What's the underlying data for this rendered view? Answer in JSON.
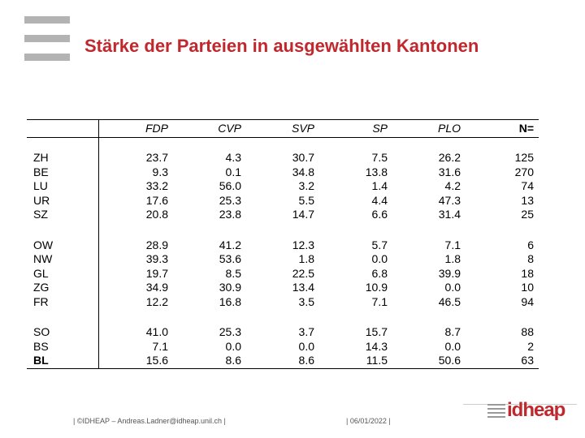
{
  "slide": {
    "title": "Stärke der Parteien in ausgewählten Kantonen"
  },
  "table": {
    "headers": [
      "",
      "FDP",
      "CVP",
      "SVP",
      "SP",
      "PLO",
      "N="
    ],
    "groups": [
      [
        {
          "canton": "ZH",
          "values": [
            "23.7",
            "4.3",
            "30.7",
            "7.5",
            "26.2",
            "125"
          ]
        },
        {
          "canton": "BE",
          "values": [
            "9.3",
            "0.1",
            "34.8",
            "13.8",
            "31.6",
            "270"
          ]
        },
        {
          "canton": "LU",
          "values": [
            "33.2",
            "56.0",
            "3.2",
            "1.4",
            "4.2",
            "74"
          ]
        },
        {
          "canton": "UR",
          "values": [
            "17.6",
            "25.3",
            "5.5",
            "4.4",
            "47.3",
            "13"
          ]
        },
        {
          "canton": "SZ",
          "values": [
            "20.8",
            "23.8",
            "14.7",
            "6.6",
            "31.4",
            "25"
          ]
        }
      ],
      [
        {
          "canton": "OW",
          "values": [
            "28.9",
            "41.2",
            "12.3",
            "5.7",
            "7.1",
            "6"
          ]
        },
        {
          "canton": "NW",
          "values": [
            "39.3",
            "53.6",
            "1.8",
            "0.0",
            "1.8",
            "8"
          ]
        },
        {
          "canton": "GL",
          "values": [
            "19.7",
            "8.5",
            "22.5",
            "6.8",
            "39.9",
            "18"
          ]
        },
        {
          "canton": "ZG",
          "values": [
            "34.9",
            "30.9",
            "13.4",
            "10.9",
            "0.0",
            "10"
          ]
        },
        {
          "canton": "FR",
          "values": [
            "12.2",
            "16.8",
            "3.5",
            "7.1",
            "46.5",
            "94"
          ]
        }
      ],
      [
        {
          "canton": "SO",
          "values": [
            "41.0",
            "25.3",
            "3.7",
            "15.7",
            "8.7",
            "88"
          ]
        },
        {
          "canton": "BS",
          "values": [
            "7.1",
            "0.0",
            "0.0",
            "14.3",
            "0.0",
            "2"
          ]
        },
        {
          "canton": "BL",
          "values": [
            "15.6",
            "8.6",
            "8.6",
            "11.5",
            "50.6",
            "63"
          ]
        }
      ]
    ]
  },
  "footer": {
    "left": "| ©IDHEAP – Andreas.Ladner@idheap.unil.ch |",
    "right": "| 06/01/2022 |"
  },
  "logo": {
    "text": "idheap",
    "color": "#c0282d"
  }
}
